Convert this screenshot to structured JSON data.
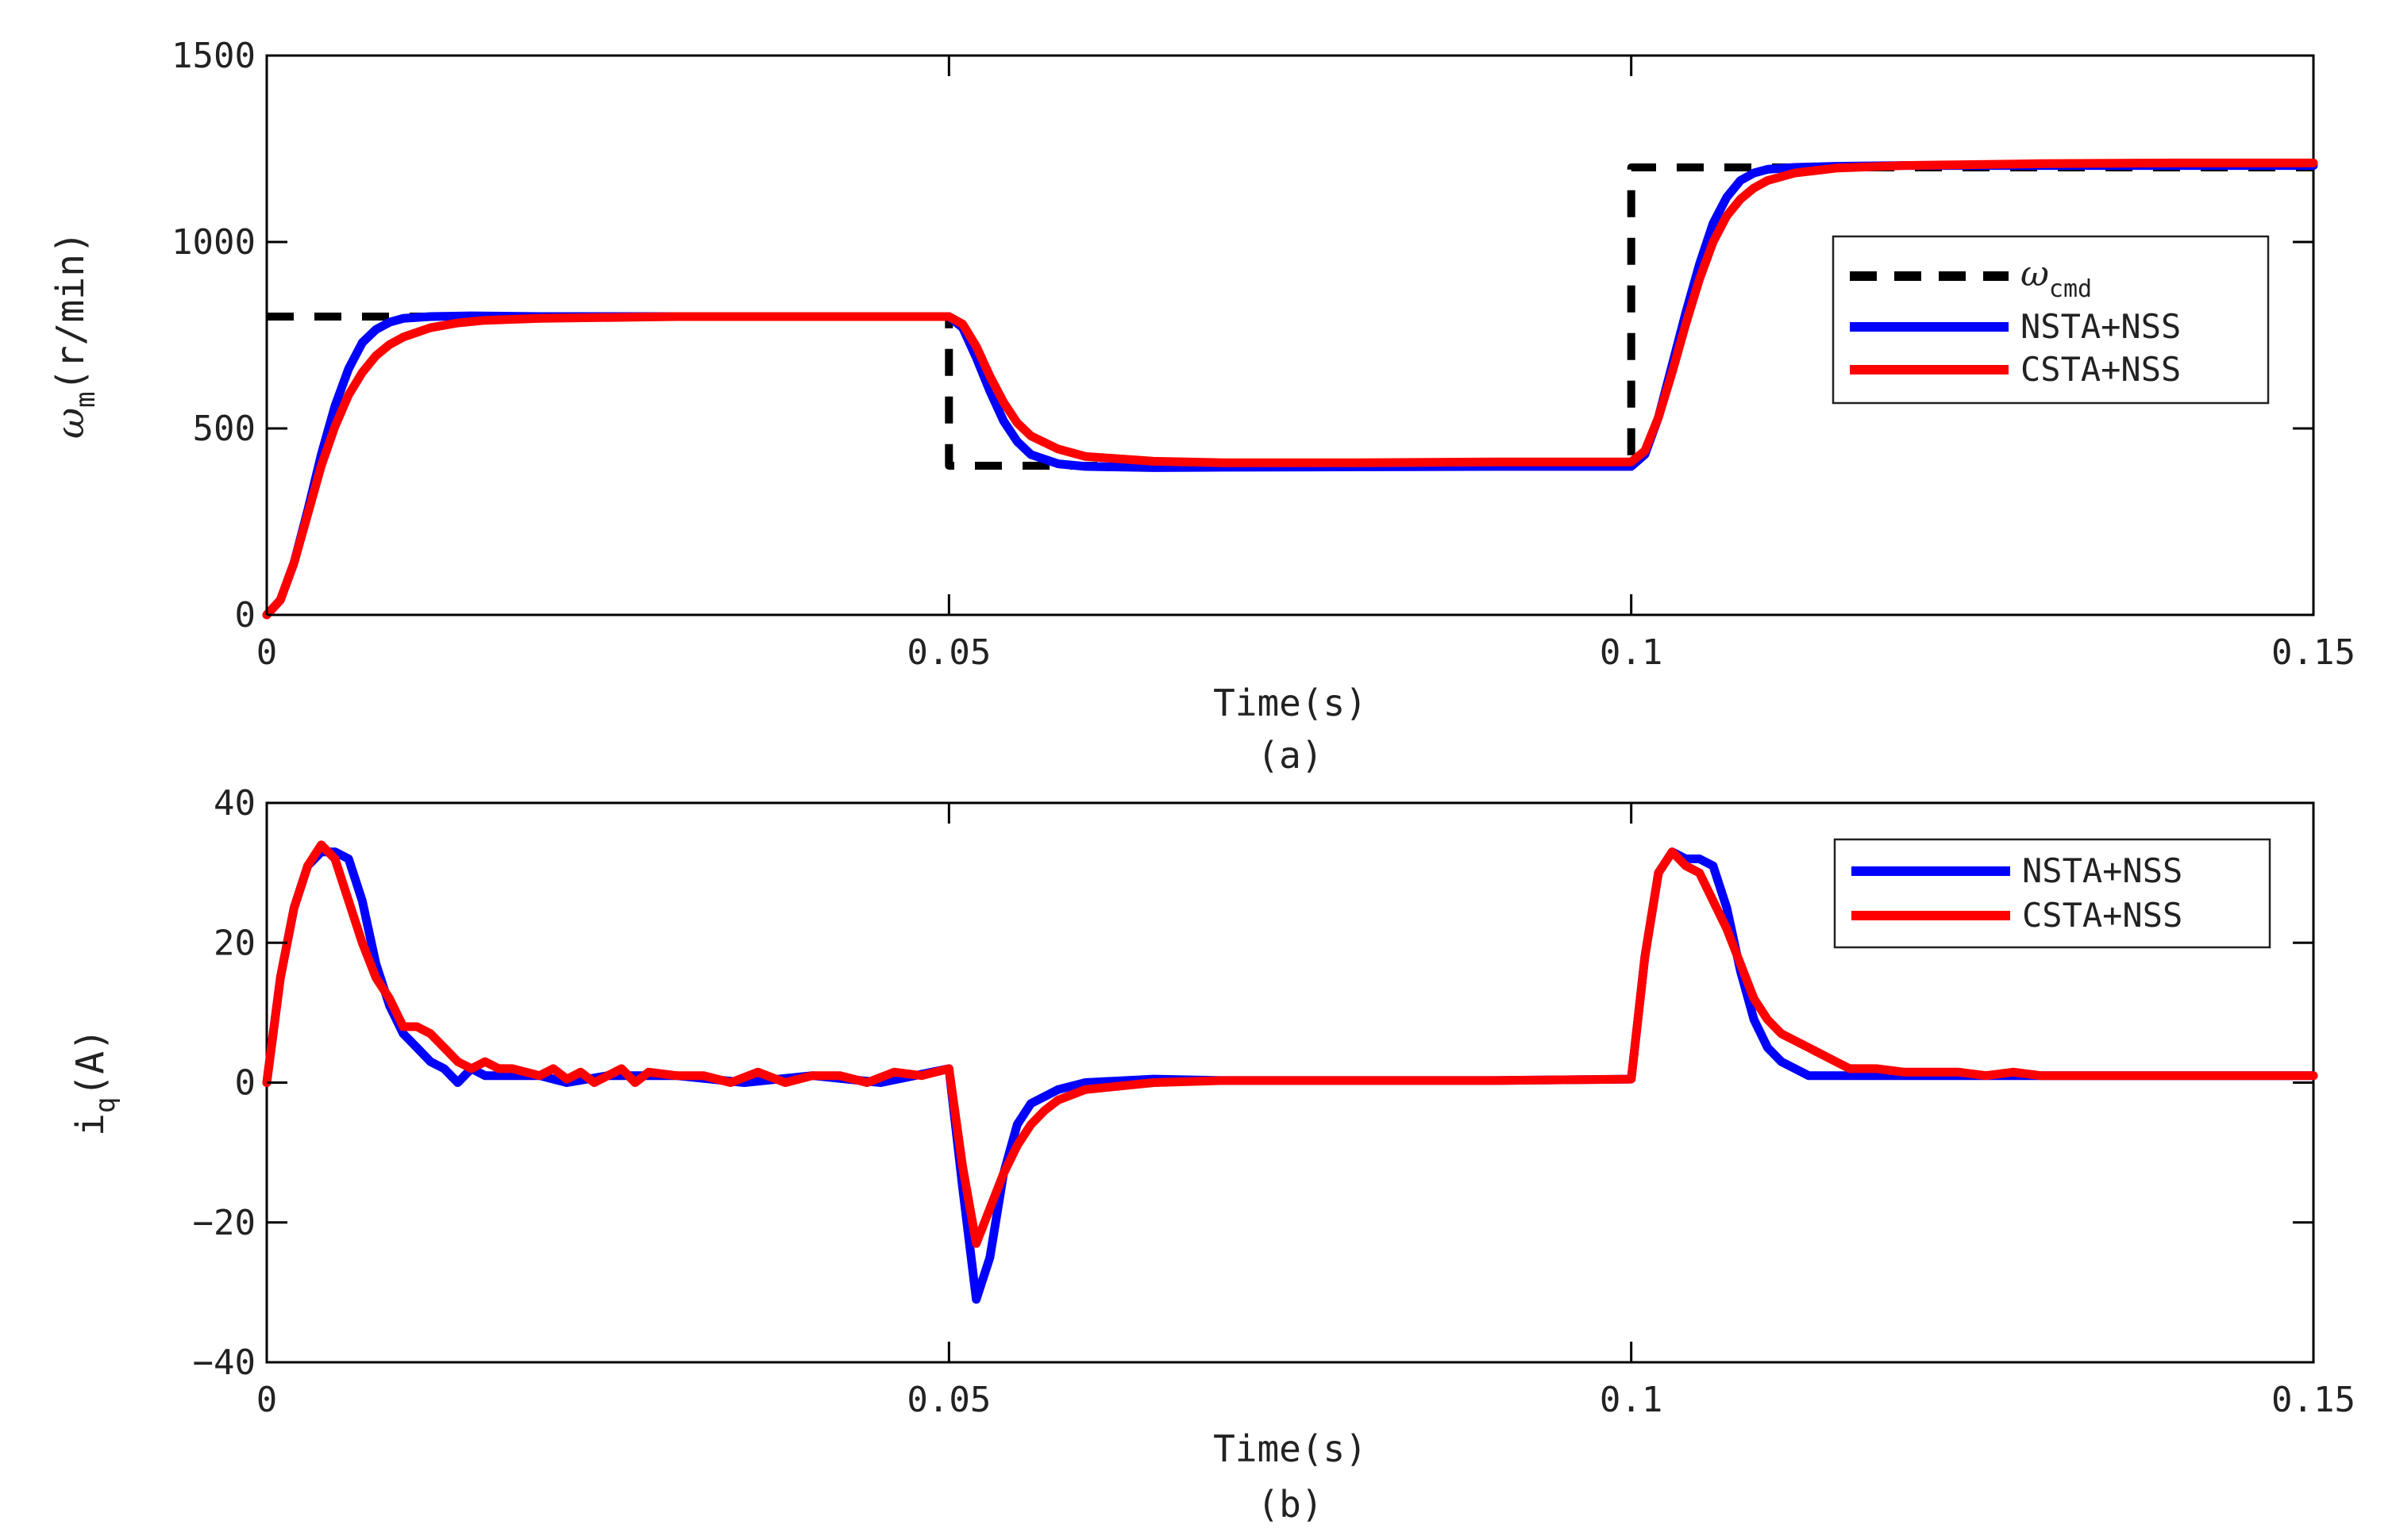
{
  "chart_data": [
    {
      "type": "line",
      "panel_label": "(a)",
      "xlabel": "Time(s)",
      "ylabel": {
        "symbol": "ω",
        "subscript": "m",
        "unit": "(r/min)"
      },
      "xlim": [
        0,
        0.15
      ],
      "ylim": [
        0,
        1500
      ],
      "xticks": [
        0,
        0.05,
        0.1,
        0.15
      ],
      "xtick_labels": [
        "0",
        "0.05",
        "0.1",
        "0.15"
      ],
      "yticks": [
        0,
        500,
        1000,
        1500
      ],
      "ytick_labels": [
        "0",
        "500",
        "1000",
        "1500"
      ],
      "grid": false,
      "legend_position": "center-right",
      "series": [
        {
          "name": "ω",
          "name_subscript": "cmd",
          "color": "#000000",
          "dash": true,
          "x": [
            0,
            0.05,
            0.05,
            0.1,
            0.1,
            0.15
          ],
          "y": [
            800,
            800,
            400,
            400,
            1200,
            1200
          ]
        },
        {
          "name": "NSTA+NSS",
          "color": "#0000ff",
          "dash": false,
          "x": [
            0,
            0.001,
            0.002,
            0.003,
            0.004,
            0.005,
            0.006,
            0.007,
            0.008,
            0.009,
            0.01,
            0.012,
            0.015,
            0.02,
            0.03,
            0.04,
            0.05,
            0.051,
            0.052,
            0.053,
            0.054,
            0.055,
            0.056,
            0.058,
            0.06,
            0.065,
            0.07,
            0.08,
            0.09,
            0.1,
            0.101,
            0.102,
            0.103,
            0.104,
            0.105,
            0.106,
            0.107,
            0.108,
            0.109,
            0.11,
            0.112,
            0.115,
            0.12,
            0.13,
            0.14,
            0.15
          ],
          "y": [
            0,
            40,
            140,
            280,
            430,
            560,
            660,
            730,
            765,
            785,
            795,
            800,
            802,
            800,
            800,
            800,
            800,
            770,
            690,
            600,
            520,
            465,
            430,
            405,
            398,
            395,
            396,
            397,
            398,
            398,
            430,
            530,
            670,
            810,
            940,
            1050,
            1120,
            1165,
            1185,
            1195,
            1200,
            1203,
            1205,
            1205,
            1205,
            1205
          ]
        },
        {
          "name": "CSTA+NSS",
          "color": "#ff0000",
          "dash": false,
          "x": [
            0,
            0.001,
            0.002,
            0.003,
            0.004,
            0.005,
            0.006,
            0.007,
            0.008,
            0.009,
            0.01,
            0.012,
            0.014,
            0.016,
            0.02,
            0.03,
            0.04,
            0.05,
            0.051,
            0.052,
            0.053,
            0.054,
            0.055,
            0.056,
            0.058,
            0.06,
            0.065,
            0.07,
            0.08,
            0.09,
            0.1,
            0.101,
            0.102,
            0.103,
            0.104,
            0.105,
            0.106,
            0.107,
            0.108,
            0.109,
            0.11,
            0.112,
            0.115,
            0.12,
            0.13,
            0.14,
            0.15
          ],
          "y": [
            0,
            40,
            140,
            270,
            400,
            505,
            590,
            650,
            695,
            725,
            745,
            770,
            783,
            790,
            795,
            800,
            800,
            800,
            780,
            720,
            640,
            570,
            515,
            480,
            445,
            425,
            412,
            408,
            408,
            410,
            410,
            440,
            530,
            650,
            780,
            900,
            1000,
            1070,
            1115,
            1145,
            1165,
            1185,
            1198,
            1205,
            1210,
            1212,
            1212
          ]
        }
      ]
    },
    {
      "type": "line",
      "panel_label": "(b)",
      "xlabel": "Time(s)",
      "ylabel": {
        "symbol": "i",
        "subscript": "q",
        "unit": "(A)"
      },
      "xlim": [
        0,
        0.15
      ],
      "ylim": [
        -40,
        40
      ],
      "xticks": [
        0,
        0.05,
        0.1,
        0.15
      ],
      "xtick_labels": [
        "0",
        "0.05",
        "0.1",
        "0.15"
      ],
      "yticks": [
        -40,
        -20,
        0,
        20,
        40
      ],
      "ytick_labels": [
        "−40",
        "−20",
        "0",
        "20",
        "40"
      ],
      "grid": false,
      "legend_position": "top-right",
      "series": [
        {
          "name": "NSTA+NSS",
          "color": "#0000ff",
          "x": [
            0,
            0.001,
            0.002,
            0.003,
            0.004,
            0.005,
            0.006,
            0.007,
            0.008,
            0.009,
            0.01,
            0.011,
            0.012,
            0.013,
            0.014,
            0.015,
            0.016,
            0.018,
            0.02,
            0.022,
            0.025,
            0.03,
            0.035,
            0.04,
            0.045,
            0.05,
            0.051,
            0.052,
            0.053,
            0.054,
            0.055,
            0.056,
            0.058,
            0.06,
            0.065,
            0.07,
            0.08,
            0.09,
            0.1,
            0.101,
            0.102,
            0.103,
            0.104,
            0.105,
            0.106,
            0.107,
            0.108,
            0.109,
            0.11,
            0.111,
            0.112,
            0.113,
            0.114,
            0.115,
            0.12,
            0.13,
            0.14,
            0.15
          ],
          "y": [
            0,
            15,
            25,
            31,
            33,
            33,
            32,
            26,
            17,
            11,
            7,
            5,
            3,
            2,
            0,
            2,
            1,
            1,
            1,
            0,
            1,
            1,
            0,
            1,
            0,
            2,
            -15,
            -31,
            -25,
            -13,
            -6,
            -3,
            -1,
            0,
            0.5,
            0.3,
            0.3,
            0.3,
            0.5,
            18,
            30,
            33,
            32,
            32,
            31,
            25,
            16,
            9,
            5,
            3,
            2,
            1,
            1,
            1,
            1,
            1,
            1,
            1
          ]
        },
        {
          "name": "CSTA+NSS",
          "color": "#ff0000",
          "x": [
            0,
            0.001,
            0.002,
            0.003,
            0.004,
            0.005,
            0.006,
            0.007,
            0.008,
            0.009,
            0.01,
            0.011,
            0.012,
            0.013,
            0.014,
            0.015,
            0.016,
            0.017,
            0.018,
            0.019,
            0.02,
            0.021,
            0.022,
            0.023,
            0.024,
            0.025,
            0.026,
            0.027,
            0.028,
            0.03,
            0.032,
            0.034,
            0.036,
            0.038,
            0.04,
            0.042,
            0.044,
            0.046,
            0.048,
            0.05,
            0.051,
            0.052,
            0.053,
            0.054,
            0.055,
            0.056,
            0.057,
            0.058,
            0.06,
            0.065,
            0.07,
            0.08,
            0.09,
            0.1,
            0.101,
            0.102,
            0.103,
            0.104,
            0.105,
            0.106,
            0.107,
            0.108,
            0.109,
            0.11,
            0.111,
            0.112,
            0.113,
            0.114,
            0.115,
            0.116,
            0.118,
            0.12,
            0.122,
            0.124,
            0.126,
            0.128,
            0.13,
            0.135,
            0.14,
            0.145,
            0.15
          ],
          "y": [
            0,
            15,
            25,
            31,
            34,
            32,
            26,
            20,
            15,
            12,
            8,
            8,
            7,
            5,
            3,
            2,
            3,
            2,
            2,
            1.5,
            1,
            2,
            0.5,
            1.5,
            0,
            1,
            2,
            0,
            1.5,
            1,
            1,
            0,
            1.5,
            0,
            1,
            1,
            0,
            1.5,
            1,
            2,
            -12,
            -23,
            -18,
            -13,
            -9,
            -6,
            -4,
            -2.5,
            -1,
            0,
            0.3,
            0.3,
            0.3,
            0.5,
            18,
            30,
            33,
            31,
            30,
            26,
            22,
            17,
            12,
            9,
            7,
            6,
            5,
            4,
            3,
            2,
            2,
            1.5,
            1.5,
            1.5,
            1,
            1.5,
            1,
            1,
            1,
            1,
            1
          ]
        }
      ]
    }
  ]
}
